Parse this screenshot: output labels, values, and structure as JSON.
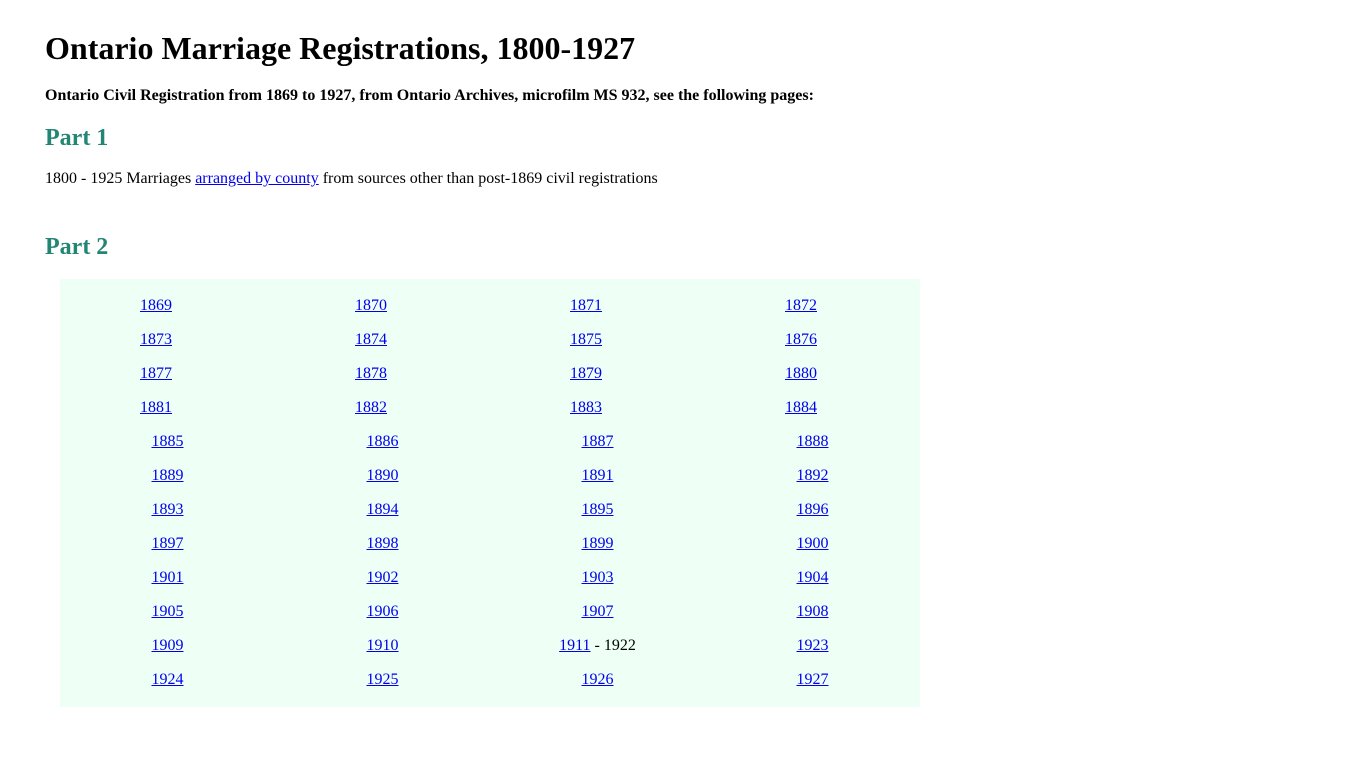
{
  "title": "Ontario Marriage Registrations, 1800-1927",
  "subtitle": "Ontario Civil Registration from 1869 to 1927, from Ontario Archives, microfilm MS 932, see the following pages:",
  "part1": {
    "heading": "Part 1",
    "text_before": "1800 - 1925 Marriages ",
    "link_text": "arranged by county",
    "text_after": " from sources other than post-1869 civil registrations"
  },
  "part2": {
    "heading": "Part 2",
    "groupA": [
      [
        "1869",
        "1870",
        "1871",
        "1872"
      ],
      [
        "1873",
        "1874",
        "1875",
        "1876"
      ],
      [
        "1877",
        "1878",
        "1879",
        "1880"
      ],
      [
        "1881",
        "1882",
        "1883",
        "1884"
      ]
    ],
    "groupB": [
      [
        {
          "t": "1885",
          "l": true
        },
        {
          "t": "1886",
          "l": true
        },
        {
          "t": "1887",
          "l": true
        },
        {
          "t": "1888",
          "l": true
        }
      ],
      [
        {
          "t": "1889",
          "l": true
        },
        {
          "t": "1890",
          "l": true
        },
        {
          "t": "1891",
          "l": true
        },
        {
          "t": "1892",
          "l": true
        }
      ],
      [
        {
          "t": "1893",
          "l": true
        },
        {
          "t": "1894",
          "l": true
        },
        {
          "t": "1895",
          "l": true
        },
        {
          "t": "1896",
          "l": true
        }
      ],
      [
        {
          "t": "1897",
          "l": true
        },
        {
          "t": "1898",
          "l": true
        },
        {
          "t": "1899",
          "l": true
        },
        {
          "t": "1900",
          "l": true
        }
      ],
      [
        {
          "t": "1901",
          "l": true
        },
        {
          "t": "1902",
          "l": true
        },
        {
          "t": "1903",
          "l": true
        },
        {
          "t": "1904",
          "l": true
        }
      ],
      [
        {
          "t": "1905",
          "l": true
        },
        {
          "t": "1906",
          "l": true
        },
        {
          "t": "1907",
          "l": true
        },
        {
          "t": "1908",
          "l": true
        }
      ],
      [
        {
          "t": "1909",
          "l": true
        },
        {
          "t": "1910",
          "l": true
        },
        {
          "t": "1911",
          "l": true,
          "suffix": " - 1922"
        },
        {
          "t": "1923",
          "l": true
        }
      ],
      [
        {
          "t": "1924",
          "l": true
        },
        {
          "t": "1925",
          "l": true
        },
        {
          "t": "1926",
          "l": true
        },
        {
          "t": "1927",
          "l": true
        }
      ]
    ]
  },
  "colors": {
    "heading_accent": "#238574",
    "link": "#0000ee",
    "table_bg": "#eefff6"
  }
}
